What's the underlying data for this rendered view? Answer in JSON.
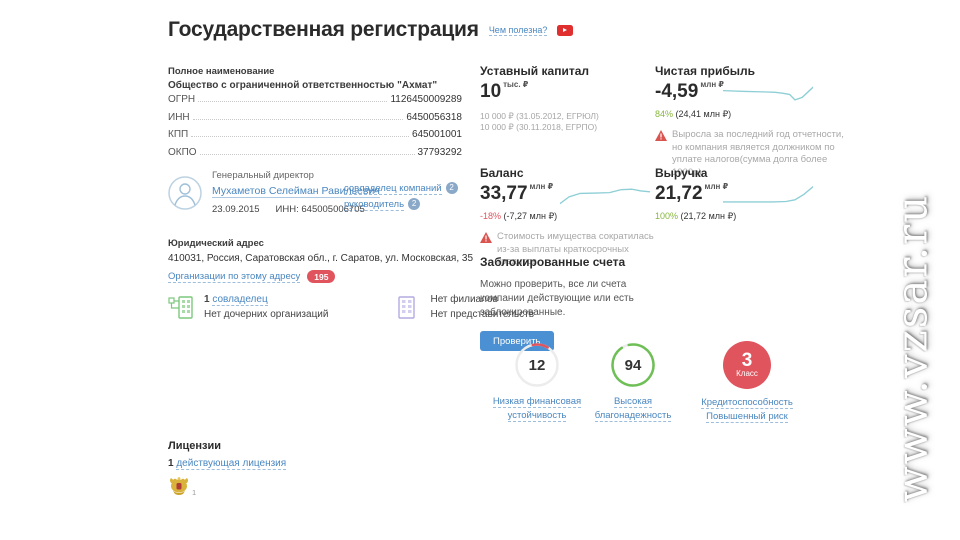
{
  "header": {
    "title": "Государственная регистрация",
    "useful_link": "Чем полезна?"
  },
  "company": {
    "full_name_label": "Полное наименование",
    "full_name": "Общество с ограниченной ответственностью \"Ахмат\"",
    "registry": [
      {
        "label": "ОГРН",
        "value": "1126450009289"
      },
      {
        "label": "ИНН",
        "value": "6450056318"
      },
      {
        "label": "КПП",
        "value": "645001001"
      },
      {
        "label": "ОКПО",
        "value": "37793292"
      }
    ]
  },
  "director": {
    "position": "Генеральный директор",
    "name": "Мухаметов Селейман Равильевич",
    "date": "23.09.2015",
    "inn": "ИНН: 645005006705",
    "coowner_link": "совладелец компаний",
    "coowner_count": "2",
    "head_link": "руководитель",
    "head_count": "2"
  },
  "address": {
    "label": "Юридический адрес",
    "value": "410031, Россия, Саратовская обл., г. Саратов, ул. Московская, 35",
    "orgs_link": "Организации по этому адресу",
    "orgs_count": "195"
  },
  "structure": {
    "owners_count": "1",
    "owners_link": "совладелец",
    "subsidiaries": "Нет дочерних организаций",
    "branches": "Нет филиалов",
    "representatives": "Нет представительств"
  },
  "licenses": {
    "title": "Лицензии",
    "count": "1",
    "link": "действующая лицензия",
    "badge": "1"
  },
  "capital": {
    "title": "Уставный капитал",
    "value": "10",
    "unit": "тыс. ₽",
    "history": [
      "10 000 ₽ (31.05.2012, ЕГРЮЛ)",
      "10 000 ₽ (30.11.2018, ЕГРПО)"
    ]
  },
  "net_profit": {
    "title": "Чистая прибыль",
    "value": "-4,59",
    "unit": "млн ₽",
    "change": "84%",
    "change_detail": "(24,41 млн ₽)",
    "warning": "Выросла за последний год отчетности, но компания является должником по уплате налогов(сумма долга более 1000р)."
  },
  "balance": {
    "title": "Баланс",
    "value": "33,77",
    "unit": "млн ₽",
    "change": "-18%",
    "change_detail": "(-7,27 млн ₽)",
    "warning": "Стоимость имущества сократилась из-за выплаты краткосрочных кредитов."
  },
  "revenue": {
    "title": "Выручка",
    "value": "21,72",
    "unit": "млн ₽",
    "change": "100%",
    "change_detail": "(21,72 млн ₽)"
  },
  "blocked_accounts": {
    "title": "Заблокированные счета",
    "text": "Можно проверить, все ли счета компании действующие или есть заблокированные.",
    "button": "Проверить"
  },
  "scores": [
    {
      "value": "12",
      "percent": 12,
      "ring_color": "#e0545e",
      "label_line1": "Низкая финансовая",
      "label_line2": "устойчивость"
    },
    {
      "value": "94",
      "percent": 94,
      "ring_color": "#6fbf57",
      "label_line1": "Высокая",
      "label_line2": "благонадежность"
    },
    {
      "value": "3",
      "sublabel": "Класс",
      "fill_color": "#e0545e",
      "label_line1": "Кредитоспособность",
      "label_line2": "Повышенный риск"
    }
  ],
  "watermark": "www.vzsar.ru",
  "colors": {
    "link": "#4a87c0",
    "accent_red": "#e0545e",
    "green": "#87b73f",
    "button_blue": "#4a90d2",
    "spark": "#8ecfd6",
    "badge_blue": "#8aa9c9"
  },
  "sparklines": {
    "net_profit": [
      [
        0,
        9
      ],
      [
        25,
        10
      ],
      [
        45,
        10.5
      ],
      [
        58,
        11
      ],
      [
        66,
        12
      ],
      [
        74,
        13.5
      ],
      [
        80,
        20
      ],
      [
        88,
        17
      ],
      [
        100,
        5
      ]
    ],
    "balance": [
      [
        0,
        22
      ],
      [
        10,
        14
      ],
      [
        22,
        10
      ],
      [
        40,
        9.5
      ],
      [
        55,
        9
      ],
      [
        68,
        5.5
      ],
      [
        80,
        5
      ],
      [
        90,
        7
      ],
      [
        100,
        8
      ]
    ],
    "revenue": [
      [
        0,
        20
      ],
      [
        55,
        20
      ],
      [
        70,
        19.5
      ],
      [
        80,
        17.5
      ],
      [
        90,
        11
      ],
      [
        100,
        2
      ]
    ]
  }
}
